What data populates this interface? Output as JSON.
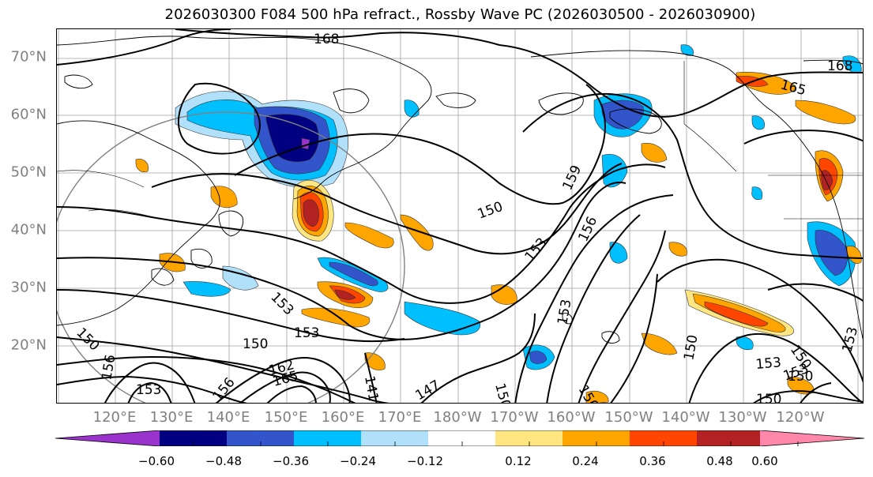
{
  "title": "2026030300 F084 500 hPa refract., Rossby Wave PC (2026030500 - 2026030900)",
  "lat_labels": [
    "70°N",
    "60°N",
    "50°N",
    "40°N",
    "30°N",
    "20°N"
  ],
  "lon_labels": [
    "120°E",
    "130°E",
    "140°E",
    "150°E",
    "160°E",
    "170°E",
    "180°W",
    "170°W",
    "160°W",
    "150°W",
    "140°W",
    "130°W",
    "120°W"
  ],
  "colorbar": {
    "ticks": [
      "−0.60",
      "−0.48",
      "−0.36",
      "−0.24",
      "−0.12",
      "0.12",
      "0.24",
      "0.36",
      "0.48",
      "0.60"
    ],
    "colors": [
      "#9933cc",
      "#000080",
      "#3355cc",
      "#00bfff",
      "#b0e0fa",
      "#ffffff",
      "#ffe680",
      "#ffa500",
      "#ff4500",
      "#b22222",
      "#ff88aa"
    ]
  },
  "contour_labels": [
    "168",
    "168",
    "165",
    "159",
    "156",
    "153",
    "153",
    "153",
    "153",
    "150",
    "150",
    "150",
    "150",
    "150",
    "150",
    "153",
    "147",
    "141",
    "153",
    "150",
    "150",
    "162",
    "165",
    "156",
    "153",
    "156",
    "153",
    "150"
  ]
}
